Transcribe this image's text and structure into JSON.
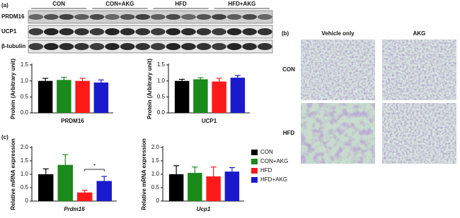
{
  "panel_labels": [
    "(a)",
    "(b)",
    "(c)"
  ],
  "groups": {
    "names": [
      "CON",
      "CON+AKG",
      "HFD",
      "HFD+AKG"
    ],
    "colors": [
      "#000000",
      "#1a8a1a",
      "#ff1a1a",
      "#1a1acc"
    ]
  },
  "blot": {
    "rows": [
      "PRDM16",
      "UCP1",
      "β-tubulin"
    ]
  },
  "histology": {
    "columns": [
      "Vehicle only",
      "AKG"
    ],
    "rows": [
      "CON",
      "HFD"
    ]
  },
  "chart_data": [
    {
      "type": "bar",
      "ylabel": "Protein (Arbitrary unit)",
      "xlabel": "PRDM16",
      "values": [
        1.0,
        1.03,
        1.0,
        0.95
      ],
      "errors": [
        0.08,
        0.08,
        0.08,
        0.08
      ],
      "ylim": [
        0,
        1.5
      ],
      "yticks": [
        {
          "value": 0,
          "label": "0.0"
        },
        0.5,
        {
          "value": 1,
          "label": "1.0"
        },
        1.5
      ]
    },
    {
      "type": "bar",
      "ylabel": "Protein (Arbitrary unit)",
      "xlabel": "UCP1",
      "values": [
        1.0,
        1.05,
        0.98,
        1.1
      ],
      "errors": [
        0.05,
        0.05,
        0.1,
        0.07
      ],
      "ylim": [
        0,
        1.5
      ],
      "yticks": [
        {
          "value": 0,
          "label": "0.0"
        },
        0.5,
        {
          "value": 1,
          "label": "1.0"
        },
        1.5
      ]
    },
    {
      "type": "bar",
      "ylabel": "Relative mRNA expression",
      "xlabel": "Prdm16",
      "values": [
        1.0,
        1.35,
        0.32,
        0.75
      ],
      "errors": [
        0.2,
        0.38,
        0.08,
        0.17
      ],
      "ylim": [
        0,
        2
      ],
      "yticks": [
        0,
        0.5,
        {
          "value": 1,
          "label": "1.0"
        },
        1.5,
        {
          "value": 2,
          "label": "2.0"
        }
      ],
      "annotation": "*"
    },
    {
      "type": "bar",
      "ylabel": "Relative mRNA expression",
      "xlabel": "Ucp1",
      "values": [
        1.0,
        1.05,
        0.92,
        1.1
      ],
      "errors": [
        0.32,
        0.22,
        0.35,
        0.15
      ],
      "ylim": [
        0,
        2
      ],
      "yticks": [
        0,
        0.5,
        {
          "value": 1,
          "label": "1.0"
        },
        1.5,
        {
          "value": 2,
          "label": "2.0"
        }
      ]
    }
  ]
}
